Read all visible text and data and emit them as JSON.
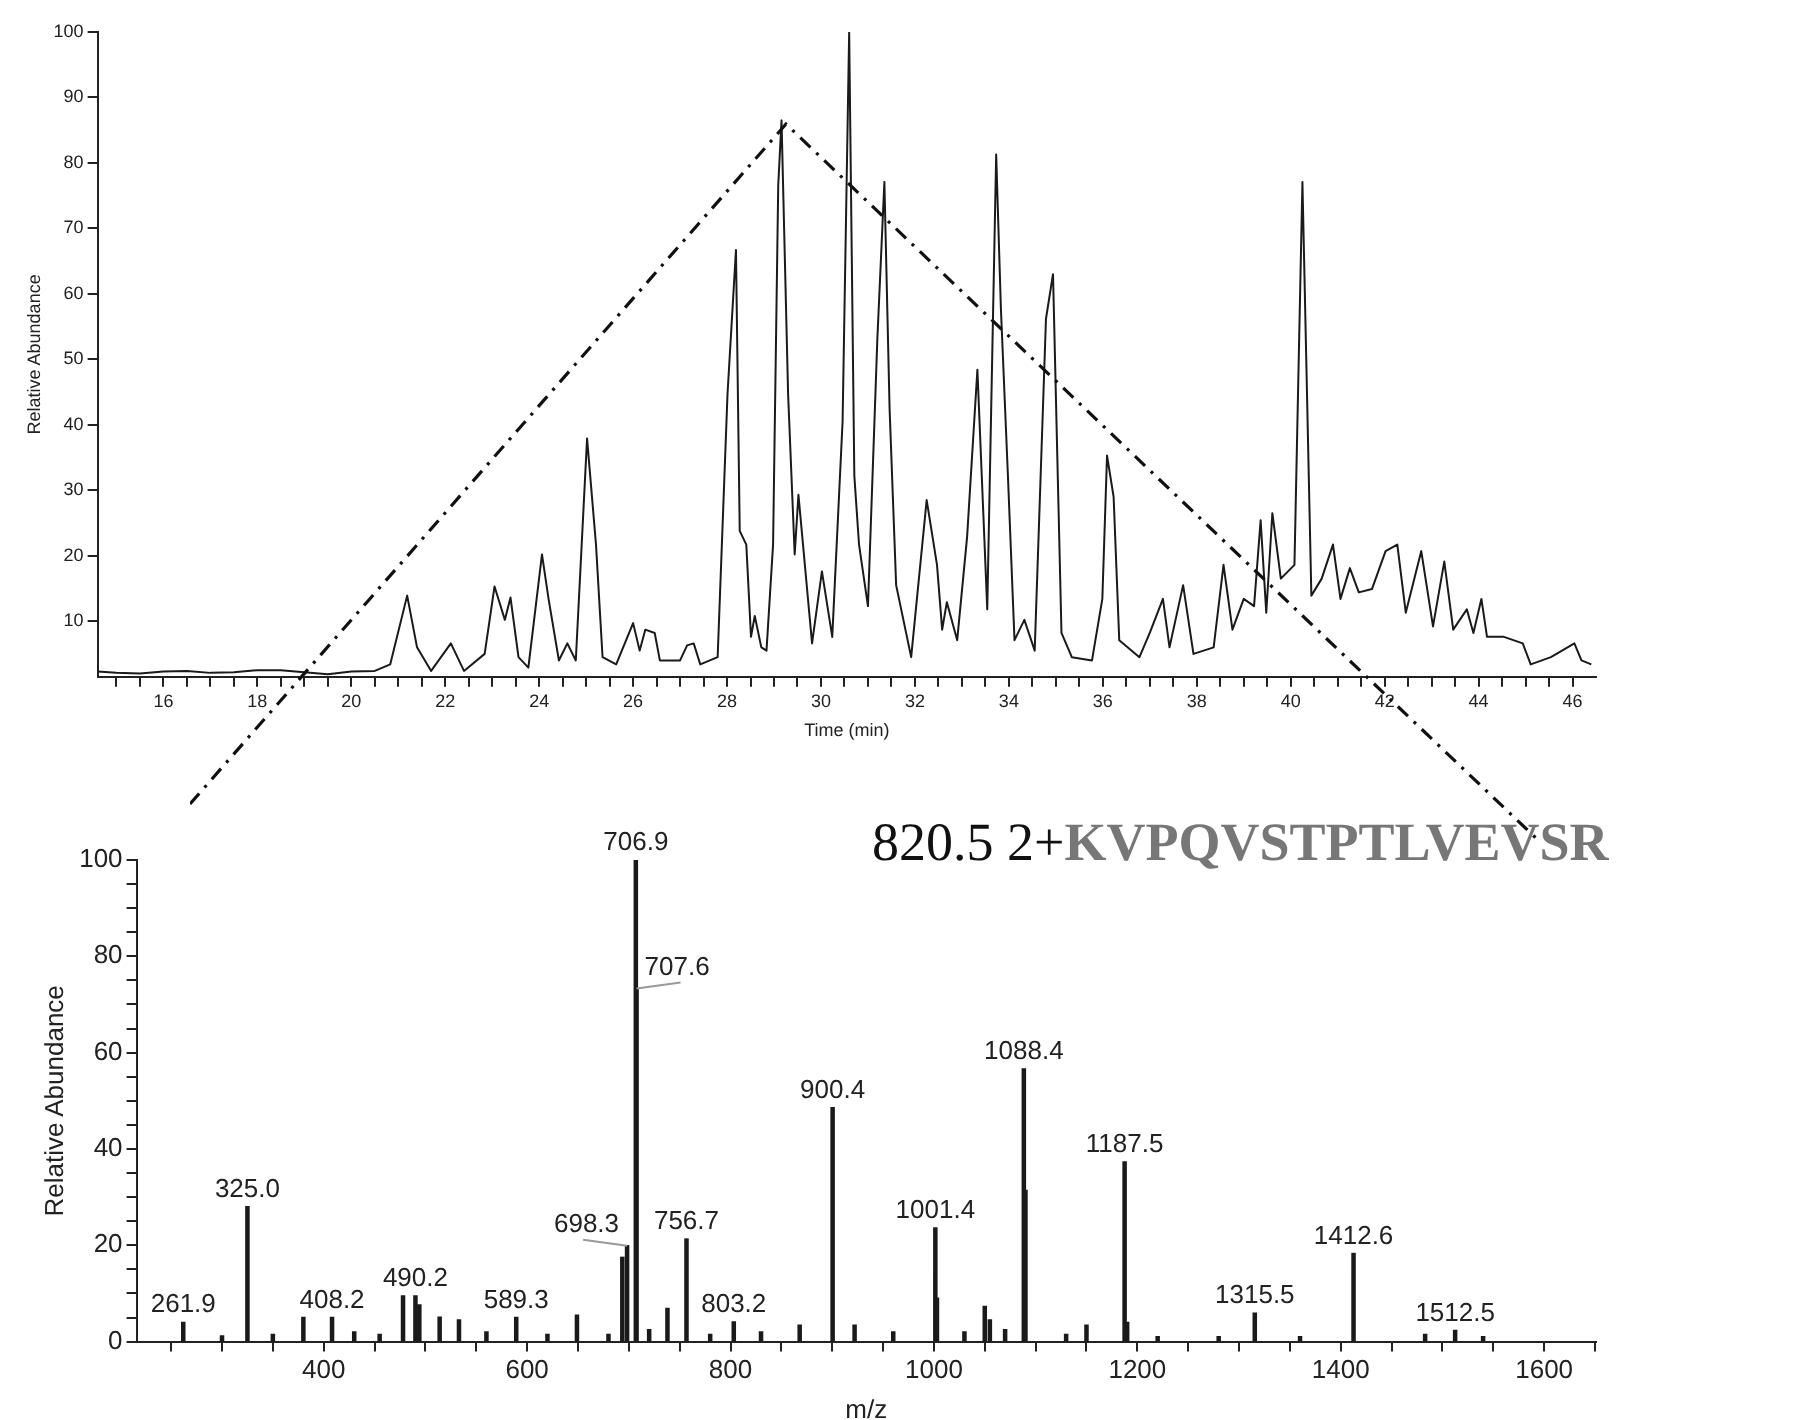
{
  "chart_data": [
    {
      "type": "line",
      "xlabel": "Time (min)",
      "ylabel": "Relative Abundance",
      "color": "#1a1a1a",
      "xlim": [
        14.6,
        46.5
      ],
      "ylim": [
        1.5,
        100
      ],
      "x": [
        14.6,
        15.0,
        15.5,
        16.0,
        16.5,
        17.0,
        17.5,
        18.0,
        18.5,
        19.0,
        19.5,
        20.0,
        20.5,
        20.83,
        21.19,
        21.4,
        21.7,
        22.12,
        22.4,
        22.84,
        23.05,
        23.27,
        23.39,
        23.56,
        23.77,
        24.06,
        24.2,
        24.42,
        24.6,
        24.78,
        25.02,
        25.21,
        25.35,
        25.64,
        26.0,
        26.14,
        26.26,
        26.46,
        26.57,
        27.0,
        27.15,
        27.29,
        27.43,
        27.8,
        28.01,
        28.19,
        28.27,
        28.41,
        28.51,
        28.59,
        28.73,
        28.84,
        28.98,
        29.09,
        29.16,
        29.3,
        29.44,
        29.52,
        29.81,
        30.02,
        30.24,
        30.46,
        30.6,
        30.71,
        30.81,
        31.0,
        31.2,
        31.35,
        31.46,
        31.6,
        31.92,
        32.25,
        32.47,
        32.58,
        32.68,
        32.9,
        33.11,
        33.33,
        33.54,
        33.73,
        33.83,
        33.98,
        34.12,
        34.33,
        34.55,
        34.79,
        34.94,
        35.12,
        35.34,
        35.77,
        35.99,
        36.09,
        36.23,
        36.35,
        36.78,
        37.0,
        37.28,
        37.42,
        37.71,
        37.93,
        38.36,
        38.57,
        38.76,
        39.0,
        39.22,
        39.36,
        39.48,
        39.61,
        39.79,
        40.08,
        40.25,
        40.44,
        40.66,
        40.9,
        41.06,
        41.26,
        41.45,
        41.73,
        42.02,
        42.27,
        42.45,
        42.78,
        43.03,
        43.27,
        43.46,
        43.75,
        43.89,
        44.06,
        44.18,
        44.54,
        44.94,
        45.11,
        45.54,
        46.04,
        46.19,
        46.4
      ],
      "values": [
        2.3,
        2.1,
        2.0,
        2.3,
        2.4,
        2.1,
        2.2,
        2.5,
        2.5,
        2.2,
        1.9,
        2.3,
        2.4,
        3.4,
        13.9,
        6,
        2.4,
        6.6,
        2.4,
        5,
        15.3,
        10.2,
        13.6,
        4.5,
        2.9,
        20.2,
        13.4,
        4,
        6.6,
        4,
        37.9,
        21.7,
        4.5,
        3.4,
        9.7,
        5.5,
        8.7,
        8.2,
        4,
        4,
        6.3,
        6.6,
        3.4,
        4.5,
        44.7,
        66.7,
        23.8,
        21.7,
        7.6,
        10.8,
        6,
        5.5,
        21.7,
        76.6,
        86.5,
        44.7,
        20.2,
        29.3,
        6.6,
        17.6,
        7.6,
        40.5,
        100,
        32.2,
        21.7,
        12.3,
        53.1,
        77.1,
        42.6,
        15.5,
        4.5,
        28.5,
        18.6,
        8.7,
        12.9,
        7.1,
        22.8,
        48.4,
        11.8,
        81.3,
        57.8,
        32.2,
        7.1,
        10.2,
        5.5,
        56.2,
        63,
        8.2,
        4.5,
        4,
        13.4,
        35.3,
        29,
        7.1,
        4.5,
        8.2,
        13.4,
        6,
        15.5,
        5,
        6,
        18.6,
        8.7,
        13.4,
        12.3,
        25.4,
        11.3,
        26.5,
        16.5,
        18.6,
        77.1,
        13.9,
        16.5,
        21.7,
        13.4,
        18.1,
        14.4,
        14.9,
        20.7,
        21.7,
        11.3,
        20.7,
        9.2,
        19.1,
        8.7,
        11.8,
        8.2,
        13.4,
        7.6,
        7.6,
        6.6,
        3.4,
        4.5,
        6.6,
        4,
        3.4
      ],
      "xticks": [
        {
          "value": 15,
          "label": null
        },
        {
          "value": 15.5,
          "label": null
        },
        16,
        {
          "value": 16.5,
          "label": null
        },
        {
          "value": 17,
          "label": null
        },
        {
          "value": 17.5,
          "label": null
        },
        18,
        {
          "value": 18.5,
          "label": null
        },
        {
          "value": 19,
          "label": null
        },
        {
          "value": 19.5,
          "label": null
        },
        20,
        {
          "value": 20.5,
          "label": null
        },
        {
          "value": 21,
          "label": null
        },
        {
          "value": 21.5,
          "label": null
        },
        22,
        {
          "value": 22.5,
          "label": null
        },
        {
          "value": 23,
          "label": null
        },
        {
          "value": 23.5,
          "label": null
        },
        24,
        {
          "value": 24.5,
          "label": null
        },
        {
          "value": 25,
          "label": null
        },
        {
          "value": 25.5,
          "label": null
        },
        26,
        {
          "value": 26.5,
          "label": null
        },
        {
          "value": 27,
          "label": null
        },
        {
          "value": 27.5,
          "label": null
        },
        28,
        {
          "value": 28.5,
          "label": null
        },
        {
          "value": 29,
          "label": null
        },
        {
          "value": 29.5,
          "label": null
        },
        30,
        {
          "value": 30.5,
          "label": null
        },
        {
          "value": 31,
          "label": null
        },
        {
          "value": 31.5,
          "label": null
        },
        32,
        {
          "value": 32.5,
          "label": null
        },
        {
          "value": 33,
          "label": null
        },
        {
          "value": 33.5,
          "label": null
        },
        34,
        {
          "value": 34.5,
          "label": null
        },
        {
          "value": 35,
          "label": null
        },
        {
          "value": 35.5,
          "label": null
        },
        36,
        {
          "value": 36.5,
          "label": null
        },
        {
          "value": 37,
          "label": null
        },
        {
          "value": 37.5,
          "label": null
        },
        38,
        {
          "value": 38.5,
          "label": null
        },
        {
          "value": 39,
          "label": null
        },
        {
          "value": 39.5,
          "label": null
        },
        40,
        {
          "value": 40.5,
          "label": null
        },
        {
          "value": 41,
          "label": null
        },
        {
          "value": 41.5,
          "label": null
        },
        42,
        {
          "value": 42.5,
          "label": null
        },
        {
          "value": 43,
          "label": null
        },
        {
          "value": 43.5,
          "label": null
        },
        44,
        {
          "value": 44.5,
          "label": null
        },
        {
          "value": 45,
          "label": null
        },
        {
          "value": 45.5,
          "label": null
        },
        46
      ],
      "yticks": [
        10,
        20,
        30,
        40,
        50,
        60,
        70,
        80,
        90,
        100
      ]
    },
    {
      "type": "bar",
      "title": "820.5 2+",
      "subtitle": "KVPQVSTPTLVEVSR",
      "xlabel": "m/z",
      "ylabel": "Relative Abundance",
      "color": "#1a1a1a",
      "xlim": [
        216,
        1651
      ],
      "ylim": [
        0,
        100
      ],
      "x": [
        261.9,
        300,
        325.0,
        350,
        380,
        408.2,
        430,
        455,
        478,
        490.2,
        494,
        514,
        533,
        560,
        589.3,
        620,
        649,
        680,
        693.6,
        698.3,
        706.9,
        707.6,
        720,
        738,
        756.7,
        780,
        803.2,
        830,
        868,
        900.4,
        922,
        960,
        1001.4,
        1003,
        1030,
        1050,
        1055,
        1070,
        1088.4,
        1090,
        1130,
        1150,
        1187.5,
        1190,
        1220,
        1280,
        1315.5,
        1360,
        1412.6,
        1483,
        1512.5,
        1540
      ],
      "values": [
        4.0,
        1.2,
        28,
        1.5,
        5,
        5,
        2,
        1.5,
        9.5,
        9.5,
        7.6,
        5.1,
        4.5,
        2,
        5,
        1.5,
        5.5,
        1.5,
        17.5,
        19.9,
        100,
        73.3,
        2.5,
        6.9,
        21.3,
        1.5,
        4.1,
        2,
        3.4,
        48.6,
        3.4,
        2,
        23.6,
        9,
        2,
        7.3,
        4.5,
        2.5,
        56.6,
        31.4,
        1.5,
        3.4,
        37.3,
        4,
        1,
        1,
        5.9,
        1,
        18.3,
        1.5,
        2.3,
        1
      ],
      "annotations": [
        {
          "text": "261.9",
          "x": 261.9,
          "y": 4.0
        },
        {
          "text": "325.0",
          "x": 325.0,
          "y": 28
        },
        {
          "text": "408.2",
          "x": 408.2,
          "y": 5
        },
        {
          "text": "490.2",
          "x": 490.2,
          "y": 9.5
        },
        {
          "text": "589.3",
          "x": 589.3,
          "y": 5
        },
        {
          "text": "698.3",
          "x": 698.3,
          "y": 19.9
        },
        {
          "text": "706.9",
          "x": 706.9,
          "y": 100
        },
        {
          "text": "707.6",
          "x": 707.6,
          "y": 73.3
        },
        {
          "text": "756.7",
          "x": 756.7,
          "y": 21.3
        },
        {
          "text": "803.2",
          "x": 803.2,
          "y": 4.1
        },
        {
          "text": "900.4",
          "x": 900.4,
          "y": 48.6
        },
        {
          "text": "1001.4",
          "x": 1001.4,
          "y": 23.6
        },
        {
          "text": "1088.4",
          "x": 1088.4,
          "y": 56.6
        },
        {
          "text": "1187.5",
          "x": 1187.5,
          "y": 37.3
        },
        {
          "text": "1315.5",
          "x": 1315.5,
          "y": 5.9
        },
        {
          "text": "1412.6",
          "x": 1412.6,
          "y": 18.3
        },
        {
          "text": "1512.5",
          "x": 1512.5,
          "y": 2.3
        }
      ],
      "xticks": [
        {
          "value": 250,
          "label": null
        },
        {
          "value": 300,
          "label": null
        },
        {
          "value": 350,
          "label": null
        },
        400,
        {
          "value": 450,
          "label": null
        },
        {
          "value": 500,
          "label": null
        },
        {
          "value": 550,
          "label": null
        },
        600,
        {
          "value": 650,
          "label": null
        },
        {
          "value": 700,
          "label": null
        },
        {
          "value": 750,
          "label": null
        },
        800,
        {
          "value": 850,
          "label": null
        },
        {
          "value": 900,
          "label": null
        },
        {
          "value": 950,
          "label": null
        },
        1000,
        {
          "value": 1050,
          "label": null
        },
        {
          "value": 1100,
          "label": null
        },
        {
          "value": 1150,
          "label": null
        },
        1200,
        {
          "value": 1250,
          "label": null
        },
        {
          "value": 1300,
          "label": null
        },
        {
          "value": 1350,
          "label": null
        },
        1400,
        {
          "value": 1450,
          "label": null
        },
        {
          "value": 1500,
          "label": null
        },
        {
          "value": 1550,
          "label": null
        },
        1600,
        {
          "value": 1650,
          "label": null
        }
      ],
      "yticks": [
        0,
        {
          "value": 5,
          "label": null
        },
        {
          "value": 10,
          "label": null
        },
        {
          "value": 15,
          "label": null
        },
        20,
        {
          "value": 25,
          "label": null
        },
        {
          "value": 30,
          "label": null
        },
        {
          "value": 35,
          "label": null
        },
        40,
        {
          "value": 45,
          "label": null
        },
        {
          "value": 50,
          "label": null
        },
        {
          "value": 55,
          "label": null
        },
        60,
        {
          "value": 65,
          "label": null
        },
        {
          "value": 70,
          "label": null
        },
        {
          "value": 75,
          "label": null
        },
        80,
        {
          "value": 85,
          "label": null
        },
        {
          "value": 90,
          "label": null
        },
        {
          "value": 95,
          "label": null
        },
        100
      ]
    }
  ]
}
